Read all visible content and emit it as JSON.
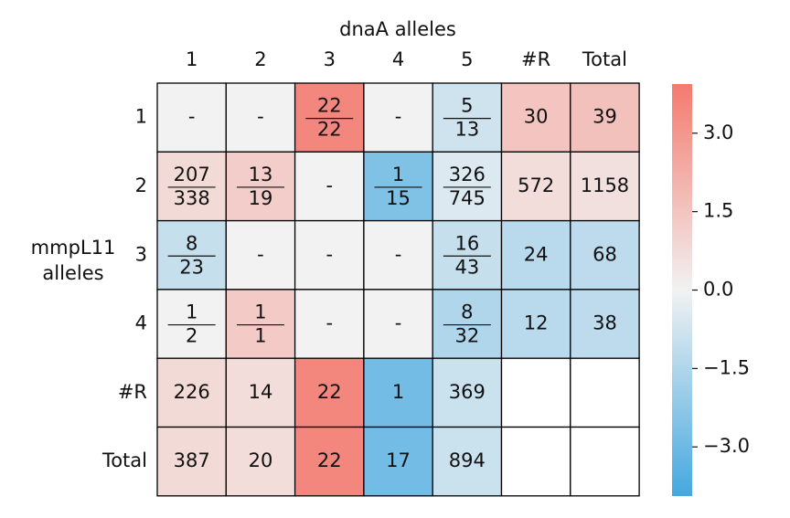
{
  "chart_data": {
    "type": "heatmap",
    "x_label": "dnaA alleles",
    "y_label": [
      "mmpL11",
      "alleles"
    ],
    "columns": [
      "1",
      "2",
      "3",
      "4",
      "5",
      "#R",
      "Total"
    ],
    "rows": [
      "1",
      "2",
      "3",
      "4",
      "#R",
      "Total"
    ],
    "values": [
      [
        0,
        0,
        3.5,
        0,
        -0.8,
        1.5,
        1.6
      ],
      [
        0.8,
        1.2,
        0,
        -2.6,
        -0.5,
        0.7,
        0.6
      ],
      [
        -1,
        0,
        0,
        0,
        -1,
        -1.3,
        -1.2
      ],
      [
        0,
        1.3,
        0,
        0,
        -1.5,
        -1.3,
        -1.2
      ],
      [
        0.8,
        0.7,
        3.5,
        -2.9,
        -0.9,
        null,
        null
      ],
      [
        0.8,
        0.7,
        3.5,
        -2.9,
        -0.9,
        null,
        null
      ]
    ],
    "cell_labels": [
      [
        "-",
        "-",
        [
          "22",
          "22"
        ],
        "-",
        [
          "5",
          "13"
        ],
        "30",
        "39"
      ],
      [
        [
          "207",
          "338"
        ],
        [
          "13",
          "19"
        ],
        "-",
        [
          "1",
          "15"
        ],
        [
          "326",
          "745"
        ],
        "572",
        "1158"
      ],
      [
        [
          "8",
          "23"
        ],
        "-",
        "-",
        "-",
        [
          "16",
          "43"
        ],
        "24",
        "68"
      ],
      [
        [
          "1",
          "2"
        ],
        [
          "1",
          "1"
        ],
        "-",
        "-",
        [
          "8",
          "32"
        ],
        "12",
        "38"
      ],
      [
        "226",
        "14",
        "22",
        "1",
        "369",
        null,
        null
      ],
      [
        "387",
        "20",
        "22",
        "17",
        "894",
        null,
        null
      ]
    ],
    "colormap": [
      "#45a8e0",
      "#f2f2f2",
      "#f47a6e"
    ],
    "clim": [
      -3.94,
      3.94
    ],
    "cticks": [
      {
        "value": 3,
        "label": "3.0"
      },
      {
        "value": 1.5,
        "label": "1.5"
      },
      {
        "value": 0,
        "label": "0.0"
      },
      {
        "value": -1.5,
        "label": "−1.5"
      },
      {
        "value": -3,
        "label": "−3.0"
      }
    ]
  }
}
